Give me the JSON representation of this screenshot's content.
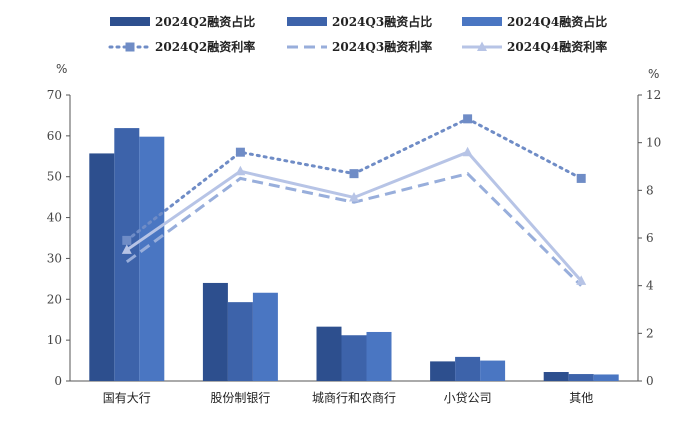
{
  "chart_data": {
    "type": "bar",
    "categories": [
      "国有大行",
      "股份制银行",
      "城商行和农商行",
      "小贷公司",
      "其他"
    ],
    "y_left": {
      "unit": "%",
      "range": [
        0,
        70
      ],
      "ticks": [
        0,
        10,
        20,
        30,
        40,
        50,
        60,
        70
      ]
    },
    "y_right": {
      "unit": "%",
      "range": [
        0,
        12
      ],
      "ticks": [
        0,
        2,
        4,
        6,
        8,
        10,
        12
      ]
    },
    "grid": false,
    "legend_position": "top",
    "bar_series": [
      {
        "name": "2024Q2融资占比",
        "values": [
          55.7,
          24.0,
          13.3,
          4.8,
          2.2
        ],
        "color": "#2d4f8e"
      },
      {
        "name": "2024Q3融资占比",
        "values": [
          61.9,
          19.3,
          11.2,
          5.9,
          1.7
        ],
        "color": "#3d63aa"
      },
      {
        "name": "2024Q4融资占比",
        "values": [
          59.8,
          21.6,
          12.0,
          5.0,
          1.6
        ],
        "color": "#4a76c2"
      }
    ],
    "line_series": [
      {
        "name": "2024Q2融资利率",
        "values": [
          5.9,
          9.6,
          8.7,
          11.0,
          8.5
        ],
        "color": "#6f8cc6",
        "style": "dotted",
        "marker": "square"
      },
      {
        "name": "2024Q3融资利率",
        "values": [
          5.0,
          8.5,
          7.5,
          8.7,
          4.0
        ],
        "color": "#98aedb",
        "style": "dashed",
        "marker": "none"
      },
      {
        "name": "2024Q4融资利率",
        "values": [
          5.5,
          8.8,
          7.7,
          9.6,
          4.2
        ],
        "color": "#b7c4e6",
        "style": "solid",
        "marker": "triangle"
      }
    ]
  }
}
